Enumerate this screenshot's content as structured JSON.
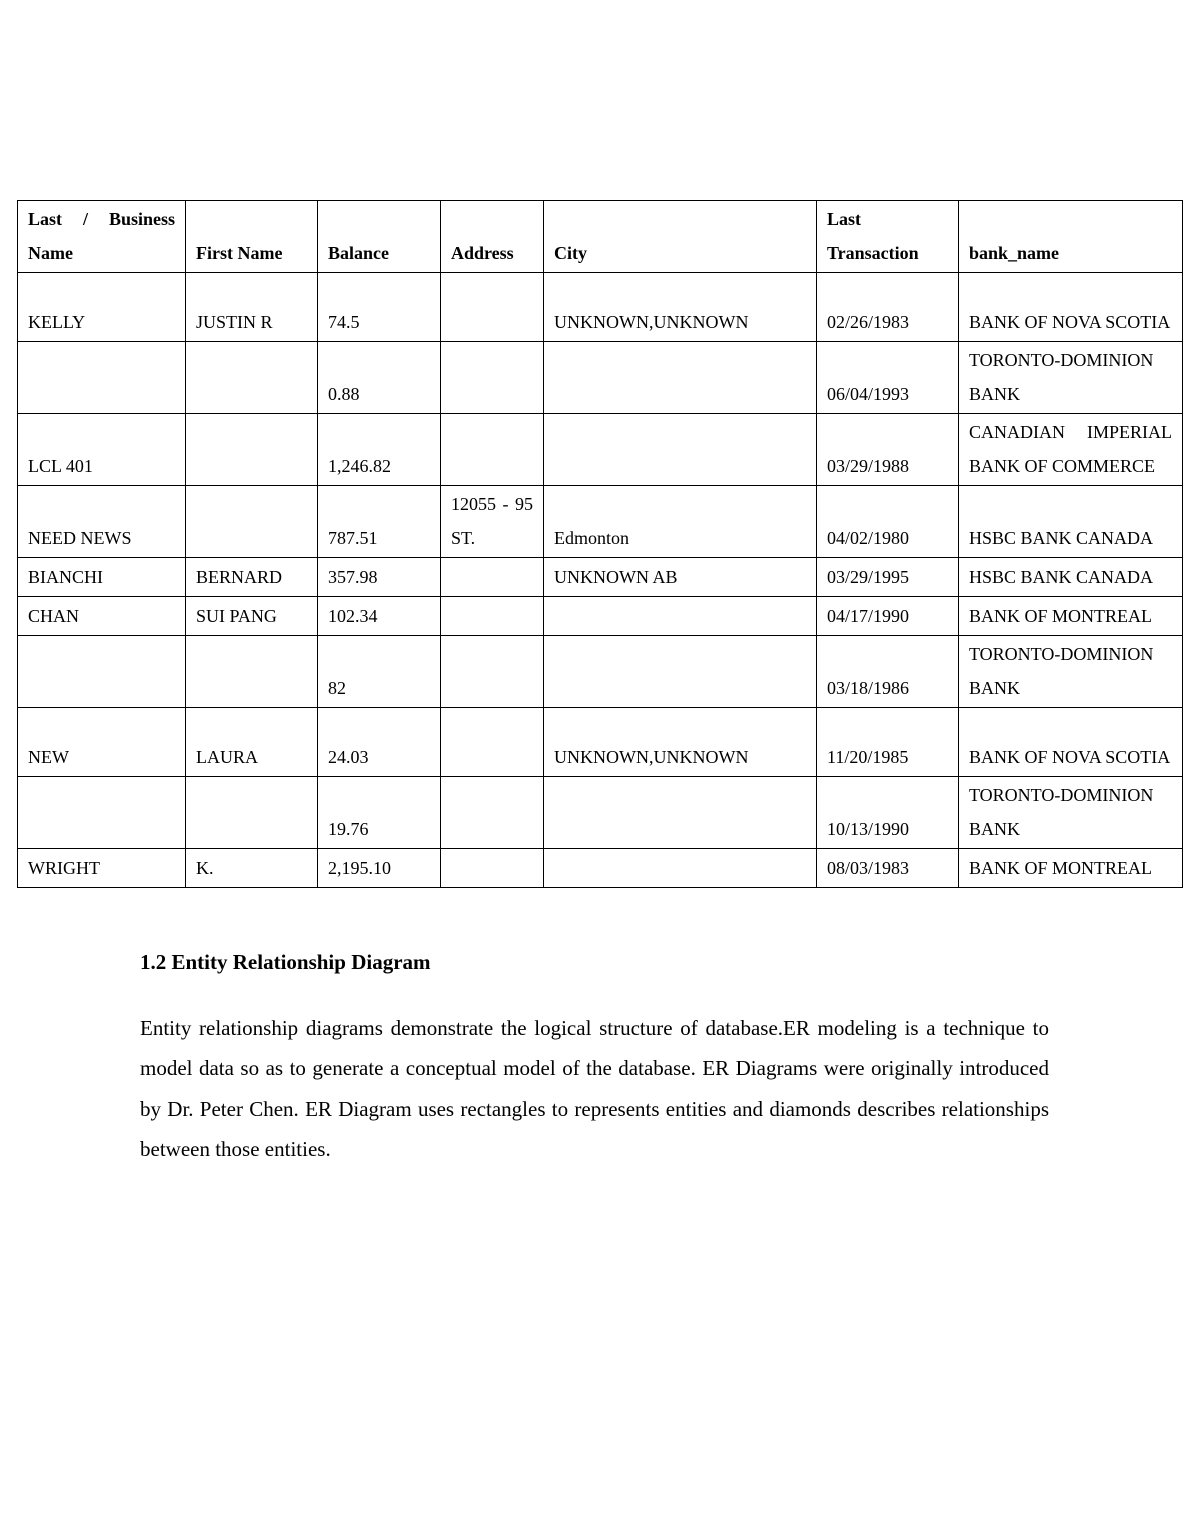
{
  "table": {
    "headers": [
      "Last / Business Name",
      "First Name",
      "Balance",
      "Address",
      "City",
      "Last Transaction",
      "bank_name"
    ],
    "rows": [
      [
        "KELLY",
        "JUSTIN R",
        "74.5",
        "",
        "UNKNOWN,UNKNOWN",
        "02/26/1983",
        "BANK OF NOVA SCOTIA"
      ],
      [
        "",
        "",
        "0.88",
        "",
        "",
        "06/04/1993",
        "TORONTO-DOMINION BANK"
      ],
      [
        "LCL 401",
        "",
        "1,246.82",
        "",
        "",
        "03/29/1988",
        "CANADIAN IMPERIAL BANK OF COMMERCE"
      ],
      [
        "NEED NEWS",
        "",
        "787.51",
        "12055 - 95 ST.",
        "Edmonton",
        "04/02/1980",
        "HSBC BANK CANADA"
      ],
      [
        "BIANCHI",
        "BERNARD",
        "357.98",
        "",
        "UNKNOWN AB",
        "03/29/1995",
        "HSBC BANK CANADA"
      ],
      [
        "CHAN",
        "SUI PANG",
        "102.34",
        "",
        "",
        "04/17/1990",
        "BANK OF MONTREAL"
      ],
      [
        "",
        "",
        "82",
        "",
        "",
        "03/18/1986",
        "TORONTO-DOMINION BANK"
      ],
      [
        "NEW",
        "LAURA",
        "24.03",
        "",
        "UNKNOWN,UNKNOWN",
        "11/20/1985",
        "BANK OF NOVA SCOTIA"
      ],
      [
        "",
        "",
        "19.76",
        "",
        "",
        "10/13/1990",
        "TORONTO-DOMINION BANK"
      ],
      [
        "WRIGHT",
        "K.",
        "2,195.10",
        "",
        "",
        "08/03/1983",
        "BANK OF MONTREAL"
      ]
    ]
  },
  "section": {
    "heading": "1.2 Entity Relationship Diagram",
    "paragraph": "Entity relationship diagrams demonstrate the logical structure of database.ER modeling is a technique to model data so as to generate a conceptual model of the database. ER Diagrams were originally introduced by Dr. Peter Chen. ER Diagram uses rectangles to represents entities and diamonds describes relationships between those entities."
  }
}
